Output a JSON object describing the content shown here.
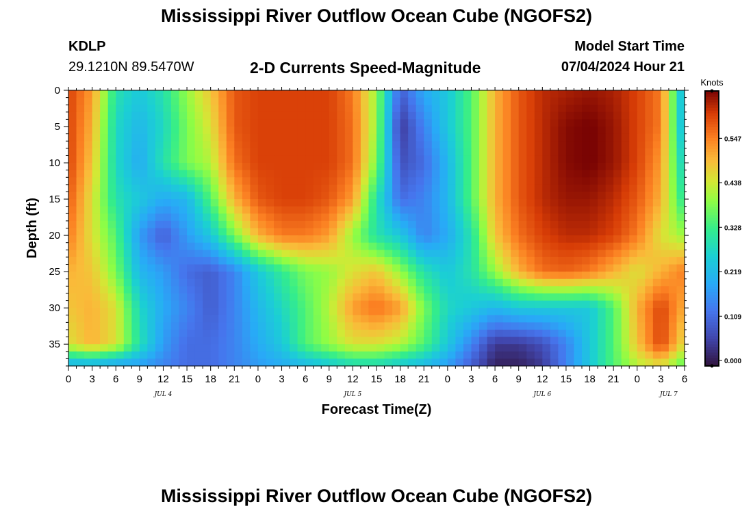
{
  "header": {
    "title": "Mississippi River Outflow Ocean Cube (NGOFS2)",
    "station_id": "KDLP",
    "station_coords": "29.1210N  89.5470W",
    "plot_title": "2-D Currents Speed-Magnitude",
    "model_start_label": "Model Start Time",
    "model_start_value": "07/04/2024 Hour 21"
  },
  "footer": {
    "title": "Mississippi River Outflow Ocean Cube (NGOFS2)"
  },
  "colors": {
    "colormap": "turbo",
    "frame": "#000000",
    "background": "#ffffff"
  },
  "chart_data": {
    "type": "heatmap",
    "ylabel": "Depth (ft)",
    "xlabel": "Forecast Time(Z)",
    "colorbar_label": "Knots",
    "colorbar_ticks": [
      "0.000",
      "0.109",
      "0.219",
      "0.328",
      "0.438",
      "0.547"
    ],
    "colorbar_values": [
      0.0,
      0.109,
      0.219,
      0.328,
      0.438,
      0.547
    ],
    "colorbar_range": [
      0.0,
      0.657
    ],
    "x_range_hours": [
      0,
      78
    ],
    "x_tick_labels": [
      "0",
      "3",
      "6",
      "9",
      "12",
      "15",
      "18",
      "21",
      "0",
      "3",
      "6",
      "9",
      "12",
      "15",
      "18",
      "21",
      "0",
      "3",
      "6",
      "9",
      "12",
      "15",
      "18",
      "21",
      "0",
      "3",
      "6"
    ],
    "date_labels": [
      {
        "text": "JUL 4",
        "hour": 12
      },
      {
        "text": "JUL 5",
        "hour": 36
      },
      {
        "text": "JUL 6",
        "hour": 60
      },
      {
        "text": "JUL 7",
        "hour": 76
      }
    ],
    "y_range_ft": [
      0,
      38
    ],
    "y_ticks": [
      0,
      5,
      10,
      15,
      20,
      25,
      30,
      35
    ],
    "grid": false,
    "speed_grid": {
      "hours": [
        0,
        3,
        6,
        9,
        12,
        15,
        18,
        21,
        24,
        27,
        30,
        33,
        36,
        39,
        42,
        45,
        48,
        51,
        54,
        57,
        60,
        63,
        66,
        69,
        72,
        75,
        78
      ],
      "depths_ft": [
        0,
        5,
        10,
        15,
        20,
        25,
        30,
        35,
        38
      ],
      "values": [
        [
          0.6,
          0.52,
          0.3,
          0.25,
          0.3,
          0.4,
          0.48,
          0.58,
          0.6,
          0.6,
          0.6,
          0.6,
          0.55,
          0.4,
          0.1,
          0.2,
          0.25,
          0.35,
          0.5,
          0.58,
          0.62,
          0.63,
          0.64,
          0.63,
          0.6,
          0.55,
          0.2
        ],
        [
          0.6,
          0.5,
          0.28,
          0.22,
          0.28,
          0.38,
          0.45,
          0.58,
          0.6,
          0.6,
          0.6,
          0.6,
          0.56,
          0.4,
          0.05,
          0.15,
          0.25,
          0.35,
          0.5,
          0.58,
          0.62,
          0.65,
          0.66,
          0.64,
          0.6,
          0.55,
          0.2
        ],
        [
          0.6,
          0.48,
          0.28,
          0.2,
          0.3,
          0.38,
          0.42,
          0.56,
          0.6,
          0.6,
          0.6,
          0.6,
          0.56,
          0.38,
          0.08,
          0.12,
          0.22,
          0.35,
          0.5,
          0.58,
          0.62,
          0.65,
          0.66,
          0.64,
          0.6,
          0.52,
          0.25
        ],
        [
          0.58,
          0.45,
          0.3,
          0.25,
          0.2,
          0.22,
          0.35,
          0.5,
          0.58,
          0.6,
          0.6,
          0.58,
          0.52,
          0.3,
          0.12,
          0.15,
          0.22,
          0.35,
          0.5,
          0.58,
          0.62,
          0.64,
          0.64,
          0.62,
          0.58,
          0.5,
          0.3
        ],
        [
          0.55,
          0.45,
          0.35,
          0.18,
          0.1,
          0.18,
          0.25,
          0.38,
          0.5,
          0.55,
          0.55,
          0.52,
          0.4,
          0.3,
          0.25,
          0.15,
          0.2,
          0.3,
          0.48,
          0.56,
          0.6,
          0.62,
          0.62,
          0.6,
          0.55,
          0.45,
          0.4
        ],
        [
          0.5,
          0.48,
          0.38,
          0.22,
          0.18,
          0.12,
          0.1,
          0.15,
          0.25,
          0.32,
          0.38,
          0.4,
          0.45,
          0.48,
          0.4,
          0.3,
          0.25,
          0.3,
          0.4,
          0.5,
          0.56,
          0.57,
          0.55,
          0.5,
          0.45,
          0.5,
          0.55
        ],
        [
          0.48,
          0.5,
          0.45,
          0.28,
          0.2,
          0.15,
          0.1,
          0.15,
          0.22,
          0.28,
          0.35,
          0.42,
          0.52,
          0.56,
          0.52,
          0.38,
          0.28,
          0.25,
          0.22,
          0.25,
          0.25,
          0.25,
          0.25,
          0.35,
          0.5,
          0.6,
          0.5
        ],
        [
          0.45,
          0.5,
          0.45,
          0.3,
          0.18,
          0.12,
          0.12,
          0.15,
          0.2,
          0.25,
          0.35,
          0.4,
          0.45,
          0.45,
          0.42,
          0.35,
          0.25,
          0.15,
          0.05,
          0.05,
          0.08,
          0.15,
          0.25,
          0.35,
          0.48,
          0.6,
          0.45
        ],
        [
          0.2,
          0.2,
          0.18,
          0.18,
          0.15,
          0.12,
          0.12,
          0.15,
          0.18,
          0.2,
          0.22,
          0.25,
          0.28,
          0.28,
          0.25,
          0.22,
          0.18,
          0.1,
          0.02,
          0.02,
          0.05,
          0.15,
          0.25,
          0.35,
          0.42,
          0.45,
          0.35
        ]
      ]
    }
  }
}
